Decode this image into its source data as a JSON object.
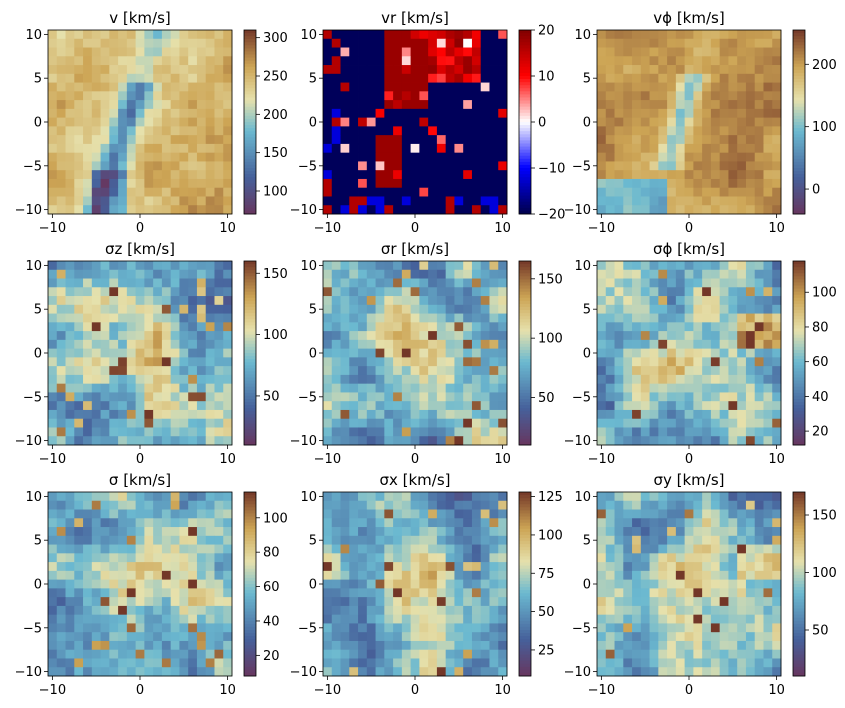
{
  "chart_data": [
    {
      "type": "heatmap",
      "title": "v [km/s]",
      "xlim": [
        -10.5,
        10.5
      ],
      "ylim": [
        -10.5,
        10.5
      ],
      "x_ticks": [
        "−10",
        "0",
        "10"
      ],
      "y_ticks": [
        "10",
        "5",
        "0",
        "−5",
        "−10"
      ],
      "colormap": "terrain-like",
      "colorbar": {
        "range": [
          70,
          310
        ],
        "ticks": [
          100,
          150,
          200,
          250,
          300
        ],
        "tick_labels": [
          "100",
          "150",
          "200",
          "250",
          "300"
        ]
      },
      "grid": false
    },
    {
      "type": "heatmap",
      "title": "vr [km/s]",
      "xlim": [
        -10.5,
        10.5
      ],
      "ylim": [
        -10.5,
        10.5
      ],
      "x_ticks": [
        "−10",
        "0",
        "10"
      ],
      "y_ticks": [
        "10",
        "5",
        "0",
        "−5",
        "−10"
      ],
      "colormap": "seismic",
      "colorbar": {
        "range": [
          -20,
          20
        ],
        "ticks": [
          -20,
          -10,
          0,
          10,
          20
        ],
        "tick_labels": [
          "−20",
          "−10",
          "0",
          "10",
          "20"
        ]
      },
      "grid": false
    },
    {
      "type": "heatmap",
      "title": "vϕ [km/s]",
      "xlim": [
        -10.5,
        10.5
      ],
      "ylim": [
        -10.5,
        10.5
      ],
      "x_ticks": [
        "−10",
        "0",
        "10"
      ],
      "y_ticks": [
        "10",
        "5",
        "0",
        "−5",
        "−10"
      ],
      "colormap": "terrain-like",
      "colorbar": {
        "range": [
          -40,
          255
        ],
        "ticks": [
          0,
          100,
          200
        ],
        "tick_labels": [
          "0",
          "100",
          "200"
        ]
      },
      "grid": false
    },
    {
      "type": "heatmap",
      "title": "σz [km/s]",
      "xlim": [
        -10.5,
        10.5
      ],
      "ylim": [
        -10.5,
        10.5
      ],
      "x_ticks": [
        "−10",
        "0",
        "10"
      ],
      "y_ticks": [
        "10",
        "5",
        "0",
        "−5",
        "−10"
      ],
      "colormap": "terrain-like",
      "colorbar": {
        "range": [
          10,
          160
        ],
        "ticks": [
          50,
          100,
          150
        ],
        "tick_labels": [
          "50",
          "100",
          "150"
        ]
      },
      "grid": false
    },
    {
      "type": "heatmap",
      "title": "σr [km/s]",
      "xlim": [
        -10.5,
        10.5
      ],
      "ylim": [
        -10.5,
        10.5
      ],
      "x_ticks": [
        "−10",
        "0",
        "10"
      ],
      "y_ticks": [
        "10",
        "5",
        "0",
        "−5",
        "−10"
      ],
      "colormap": "terrain-like",
      "colorbar": {
        "range": [
          10,
          165
        ],
        "ticks": [
          50,
          100,
          150
        ],
        "tick_labels": [
          "50",
          "100",
          "150"
        ]
      },
      "grid": false
    },
    {
      "type": "heatmap",
      "title": "σϕ [km/s]",
      "xlim": [
        -10.5,
        10.5
      ],
      "ylim": [
        -10.5,
        10.5
      ],
      "x_ticks": [
        "−10",
        "0",
        "10"
      ],
      "y_ticks": [
        "10",
        "5",
        "0",
        "−5",
        "−10"
      ],
      "colormap": "terrain-like",
      "colorbar": {
        "range": [
          12,
          118
        ],
        "ticks": [
          20,
          40,
          60,
          80,
          100
        ],
        "tick_labels": [
          "20",
          "40",
          "60",
          "80",
          "100"
        ]
      },
      "grid": false
    },
    {
      "type": "heatmap",
      "title": "σ [km/s]",
      "xlim": [
        -10.5,
        10.5
      ],
      "ylim": [
        -10.5,
        10.5
      ],
      "x_ticks": [
        "−10",
        "0",
        "10"
      ],
      "y_ticks": [
        "10",
        "5",
        "0",
        "−5",
        "−10"
      ],
      "colormap": "terrain-like",
      "colorbar": {
        "range": [
          8,
          115
        ],
        "ticks": [
          20,
          40,
          60,
          80,
          100
        ],
        "tick_labels": [
          "20",
          "40",
          "60",
          "80",
          "100"
        ]
      },
      "grid": false
    },
    {
      "type": "heatmap",
      "title": "σx [km/s]",
      "xlim": [
        -10.5,
        10.5
      ],
      "ylim": [
        -10.5,
        10.5
      ],
      "x_ticks": [
        "−10",
        "0",
        "10"
      ],
      "y_ticks": [
        "10",
        "5",
        "0",
        "−5",
        "−10"
      ],
      "colormap": "terrain-like",
      "colorbar": {
        "range": [
          8,
          128
        ],
        "ticks": [
          25,
          50,
          75,
          100,
          125
        ],
        "tick_labels": [
          "25",
          "50",
          "75",
          "100",
          "125"
        ]
      },
      "grid": false
    },
    {
      "type": "heatmap",
      "title": "σy [km/s]",
      "xlim": [
        -10.5,
        10.5
      ],
      "ylim": [
        -10.5,
        10.5
      ],
      "x_ticks": [
        "−10",
        "0",
        "10"
      ],
      "y_ticks": [
        "10",
        "5",
        "0",
        "−5",
        "−10"
      ],
      "colormap": "terrain-like",
      "colorbar": {
        "range": [
          10,
          170
        ],
        "ticks": [
          50,
          100,
          150
        ],
        "tick_labels": [
          "50",
          "100",
          "150"
        ]
      },
      "grid": false
    }
  ]
}
